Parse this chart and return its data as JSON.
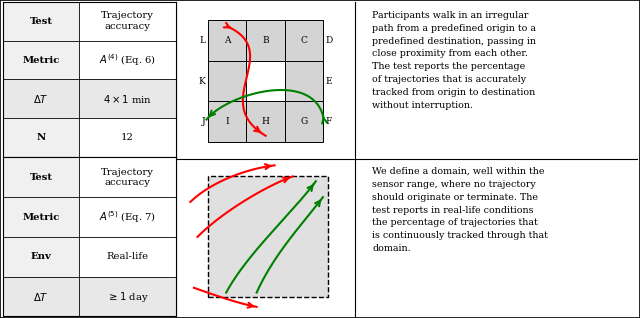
{
  "fig_width": 6.4,
  "fig_height": 3.18,
  "bg_color": "#ffffff",
  "row1": {
    "table_rows": [
      {
        "label": "Test",
        "value": "Trajectory\naccuracy",
        "bold_label": true,
        "shaded_left": false,
        "shaded_right": false
      },
      {
        "label": "Metric",
        "value": "$A^{(4)}$ (Eq. 6)",
        "bold_label": true,
        "shaded_left": false,
        "shaded_right": false
      },
      {
        "label": "$\\Delta T$",
        "value": "$4 \\times 1$ min",
        "bold_label": false,
        "shaded_left": true,
        "shaded_right": true
      },
      {
        "label": "N",
        "value": "12",
        "bold_label": true,
        "shaded_left": false,
        "shaded_right": false
      }
    ],
    "description": "Participants walk in an irregular\npath from a predefined origin to a\npredefined destination, passing in\nclose proximity from each other.\nThe test reports the percentage\nof trajectories that is accurately\ntracked from origin to destination\nwithout interruption."
  },
  "row2": {
    "table_rows": [
      {
        "label": "Test",
        "value": "Trajectory\naccuracy",
        "bold_label": true,
        "shaded_left": false,
        "shaded_right": false
      },
      {
        "label": "Metric",
        "value": "$A^{(5)}$ (Eq. 7)",
        "bold_label": true,
        "shaded_left": false,
        "shaded_right": false
      },
      {
        "label": "Env",
        "value": "Real-life",
        "bold_label": true,
        "shaded_left": false,
        "shaded_right": false
      },
      {
        "label": "$\\Delta T$",
        "value": "$\\geq 1$ day",
        "bold_label": false,
        "shaded_left": true,
        "shaded_right": true
      }
    ],
    "description": "We define a domain, well within the\nsensor range, where no trajectory\nshould originate or terminate. The\ntest reports in real-life conditions\nthe percentage of trajectories that\nis continuously tracked through that\ndomain."
  }
}
